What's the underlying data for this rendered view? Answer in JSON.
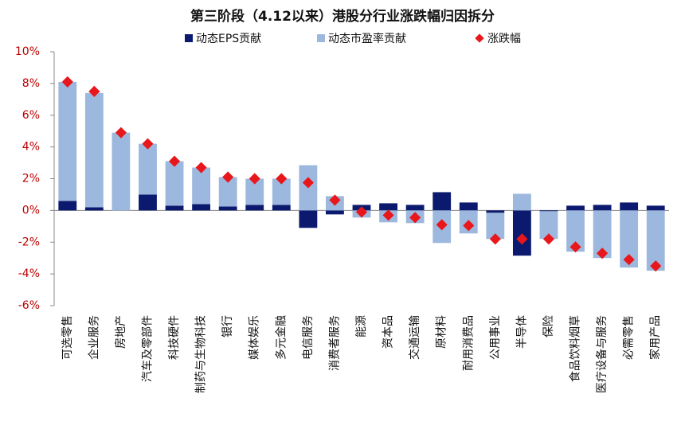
{
  "chart_data": {
    "type": "bar",
    "stacked": true,
    "title": "第三阶段（4.12以来）港股分行业涨跌幅归因拆分",
    "categories": [
      "可选零售",
      "企业服务",
      "房地产",
      "汽车及零部件",
      "科技硬件",
      "制药与生物科技",
      "银行",
      "媒体娱乐",
      "多元金融",
      "电信服务",
      "消费者服务",
      "能源",
      "资本品",
      "交通运输",
      "原材料",
      "耐用消费品",
      "公用事业",
      "半导体",
      "保险",
      "食品饮料烟草",
      "医疗设备与服务",
      "必需零售",
      "家用产品"
    ],
    "series": [
      {
        "name": "动态EPS贡献",
        "color": "#0b1a6e",
        "kind": "bar",
        "values": [
          0.6,
          0.2,
          0,
          1.0,
          0.3,
          0.4,
          0.25,
          0.35,
          0.35,
          -1.1,
          -0.25,
          0.35,
          0.45,
          0.35,
          1.15,
          0.5,
          -0.15,
          -2.85,
          -0.05,
          0.3,
          0.35,
          0.5,
          0.3
        ]
      },
      {
        "name": "动态市盈率贡献",
        "color": "#9db8de",
        "kind": "bar",
        "values": [
          7.5,
          7.2,
          4.9,
          3.2,
          2.8,
          2.3,
          1.85,
          1.65,
          1.65,
          2.85,
          0.9,
          -0.45,
          -0.75,
          -0.8,
          -2.05,
          -1.45,
          -1.65,
          1.05,
          -1.75,
          -2.6,
          -3.0,
          -3.6,
          -3.8
        ]
      },
      {
        "name": "涨跌幅",
        "color": "#e8171b",
        "kind": "marker",
        "values": [
          8.1,
          7.5,
          4.9,
          4.2,
          3.1,
          2.7,
          2.1,
          2.0,
          2.0,
          1.75,
          0.65,
          -0.1,
          -0.3,
          -0.45,
          -0.9,
          -0.95,
          -1.8,
          -1.8,
          -1.8,
          -2.3,
          -2.7,
          -3.1,
          -3.5
        ]
      }
    ],
    "ylim": [
      -6,
      10
    ],
    "yticks": [
      {
        "value": -6,
        "label": "-6%"
      },
      {
        "value": -4,
        "label": "-4%"
      },
      {
        "value": -2,
        "label": "-2%"
      },
      {
        "value": 0,
        "label": "0%"
      },
      {
        "value": 2,
        "label": "2%"
      },
      {
        "value": 4,
        "label": "4%"
      },
      {
        "value": 6,
        "label": "6%"
      },
      {
        "value": 8,
        "label": "8%"
      },
      {
        "value": 10,
        "label": "10%"
      }
    ],
    "tick_color": "#c00000"
  }
}
